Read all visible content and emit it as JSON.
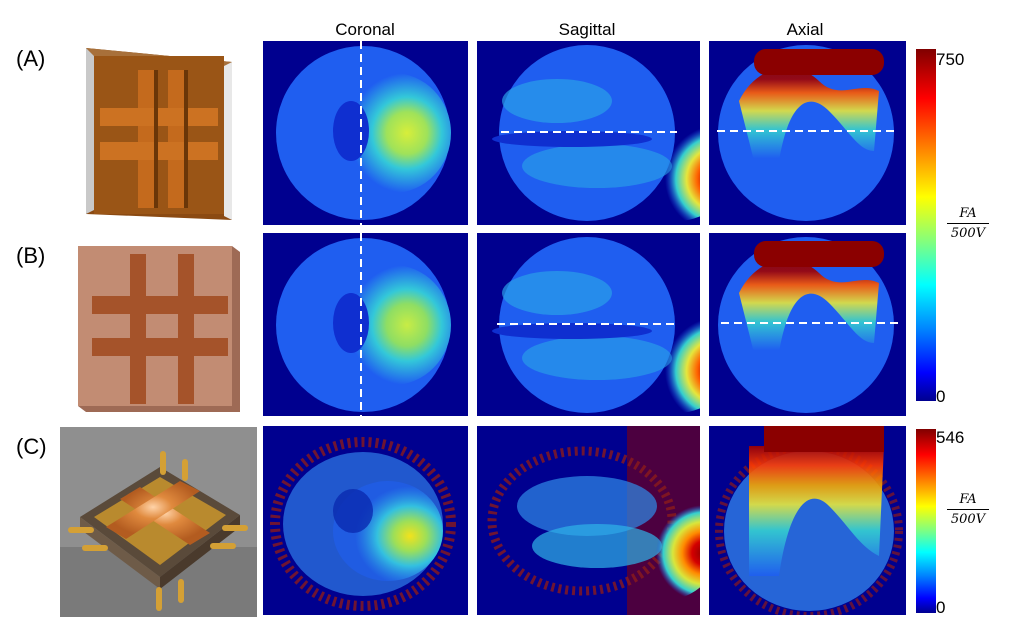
{
  "columns": [
    "Coronal",
    "Sagittal",
    "Axial"
  ],
  "rows": [
    {
      "label": "(A)",
      "scale_max": "750"
    },
    {
      "label": "(B)",
      "scale_max": "750"
    },
    {
      "label": "(C)",
      "scale_max": "546"
    }
  ],
  "colorbar_top": {
    "max": "750",
    "min": "0",
    "unit_num": "FA",
    "unit_den": "500V"
  },
  "colorbar_bottom": {
    "max": "546",
    "min": "0",
    "unit_num": "FA",
    "unit_den": "500V"
  },
  "colors": {
    "background": "#00008f",
    "dashed_line": "#ffffff"
  }
}
